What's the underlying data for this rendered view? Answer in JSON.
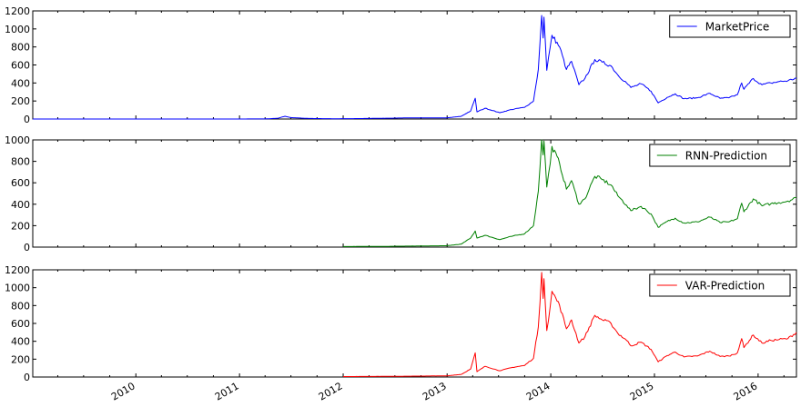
{
  "chart_data": [
    {
      "type": "line",
      "series": [
        {
          "name": "MarketPrice",
          "color": "#0000ff"
        }
      ],
      "x_range": [
        "2009-01-03",
        "2016-05-15"
      ],
      "ylim": [
        0,
        1200
      ],
      "yticks": [
        0,
        200,
        400,
        600,
        800,
        1000,
        1200
      ],
      "legend": "top-right",
      "grid": false,
      "points": [
        [
          "2009-01-03",
          0
        ],
        [
          "2010-01-01",
          0.3
        ],
        [
          "2010-07-15",
          0.07
        ],
        [
          "2011-01-01",
          0.3
        ],
        [
          "2011-04-01",
          1
        ],
        [
          "2011-05-15",
          8
        ],
        [
          "2011-06-10",
          30
        ],
        [
          "2011-07-01",
          16
        ],
        [
          "2011-09-01",
          6
        ],
        [
          "2011-12-01",
          3
        ],
        [
          "2012-03-01",
          5
        ],
        [
          "2012-08-15",
          12
        ],
        [
          "2012-12-31",
          13
        ],
        [
          "2013-02-20",
          30
        ],
        [
          "2013-03-25",
          90
        ],
        [
          "2013-04-10",
          230
        ],
        [
          "2013-04-16",
          80
        ],
        [
          "2013-05-15",
          120
        ],
        [
          "2013-07-05",
          70
        ],
        [
          "2013-08-15",
          105
        ],
        [
          "2013-10-01",
          130
        ],
        [
          "2013-11-01",
          200
        ],
        [
          "2013-11-18",
          550
        ],
        [
          "2013-11-30",
          1150
        ],
        [
          "2013-12-05",
          900
        ],
        [
          "2013-12-08",
          1130
        ],
        [
          "2013-12-18",
          540
        ],
        [
          "2013-12-30",
          800
        ],
        [
          "2014-01-05",
          930
        ],
        [
          "2014-02-01",
          800
        ],
        [
          "2014-02-25",
          550
        ],
        [
          "2014-03-15",
          640
        ],
        [
          "2014-04-10",
          380
        ],
        [
          "2014-05-01",
          450
        ],
        [
          "2014-06-05",
          660
        ],
        [
          "2014-07-01",
          630
        ],
        [
          "2014-08-01",
          590
        ],
        [
          "2014-08-25",
          490
        ],
        [
          "2014-09-25",
          400
        ],
        [
          "2014-10-10",
          350
        ],
        [
          "2014-11-15",
          390
        ],
        [
          "2014-12-20",
          310
        ],
        [
          "2015-01-14",
          180
        ],
        [
          "2015-02-15",
          240
        ],
        [
          "2015-03-15",
          280
        ],
        [
          "2015-04-15",
          225
        ],
        [
          "2015-06-01",
          235
        ],
        [
          "2015-07-15",
          285
        ],
        [
          "2015-08-20",
          230
        ],
        [
          "2015-09-20",
          235
        ],
        [
          "2015-10-20",
          270
        ],
        [
          "2015-11-04",
          400
        ],
        [
          "2015-11-12",
          330
        ],
        [
          "2015-12-15",
          450
        ],
        [
          "2016-01-15",
          380
        ],
        [
          "2016-02-15",
          400
        ],
        [
          "2016-03-15",
          415
        ],
        [
          "2016-04-15",
          425
        ],
        [
          "2016-05-15",
          455
        ]
      ]
    },
    {
      "type": "line",
      "series": [
        {
          "name": "RNN-Prediction",
          "color": "#008000"
        }
      ],
      "x_range": [
        "2009-01-03",
        "2016-05-15"
      ],
      "ylim": [
        0,
        1000
      ],
      "yticks": [
        0,
        200,
        400,
        600,
        800,
        1000
      ],
      "legend": "top-right",
      "grid": false,
      "points": [
        [
          "2012-01-01",
          5
        ],
        [
          "2012-06-01",
          7
        ],
        [
          "2012-12-31",
          13
        ],
        [
          "2013-02-20",
          28
        ],
        [
          "2013-03-25",
          85
        ],
        [
          "2013-04-10",
          150
        ],
        [
          "2013-04-16",
          85
        ],
        [
          "2013-05-15",
          110
        ],
        [
          "2013-07-05",
          70
        ],
        [
          "2013-08-15",
          100
        ],
        [
          "2013-10-01",
          125
        ],
        [
          "2013-11-01",
          200
        ],
        [
          "2013-11-18",
          520
        ],
        [
          "2013-11-30",
          1000
        ],
        [
          "2013-12-05",
          860
        ],
        [
          "2013-12-08",
          990
        ],
        [
          "2013-12-18",
          560
        ],
        [
          "2013-12-30",
          780
        ],
        [
          "2014-01-05",
          940
        ],
        [
          "2014-02-01",
          780
        ],
        [
          "2014-02-25",
          540
        ],
        [
          "2014-03-15",
          620
        ],
        [
          "2014-04-10",
          400
        ],
        [
          "2014-05-01",
          450
        ],
        [
          "2014-06-05",
          660
        ],
        [
          "2014-07-01",
          630
        ],
        [
          "2014-08-01",
          580
        ],
        [
          "2014-08-25",
          480
        ],
        [
          "2014-09-25",
          390
        ],
        [
          "2014-10-10",
          340
        ],
        [
          "2014-11-15",
          380
        ],
        [
          "2014-12-20",
          310
        ],
        [
          "2015-01-14",
          185
        ],
        [
          "2015-02-15",
          240
        ],
        [
          "2015-03-15",
          270
        ],
        [
          "2015-04-15",
          225
        ],
        [
          "2015-06-01",
          235
        ],
        [
          "2015-07-15",
          280
        ],
        [
          "2015-08-20",
          230
        ],
        [
          "2015-09-20",
          235
        ],
        [
          "2015-10-20",
          265
        ],
        [
          "2015-11-04",
          410
        ],
        [
          "2015-11-12",
          330
        ],
        [
          "2015-12-15",
          450
        ],
        [
          "2016-01-15",
          385
        ],
        [
          "2016-02-15",
          405
        ],
        [
          "2016-03-15",
          415
        ],
        [
          "2016-04-15",
          430
        ],
        [
          "2016-05-15",
          460
        ]
      ]
    },
    {
      "type": "line",
      "series": [
        {
          "name": "VAR-Prediction",
          "color": "#ff0000"
        }
      ],
      "x_range": [
        "2009-01-03",
        "2016-05-15"
      ],
      "ylim": [
        0,
        1200
      ],
      "yticks": [
        0,
        200,
        400,
        600,
        800,
        1000,
        1200
      ],
      "xticks": [
        "2010",
        "2011",
        "2012",
        "2013",
        "2014",
        "2015",
        "2016"
      ],
      "legend": "top-right",
      "grid": false,
      "points": [
        [
          "2012-01-01",
          5
        ],
        [
          "2012-06-01",
          7
        ],
        [
          "2012-12-31",
          13
        ],
        [
          "2013-02-20",
          30
        ],
        [
          "2013-03-25",
          90
        ],
        [
          "2013-04-10",
          270
        ],
        [
          "2013-04-16",
          60
        ],
        [
          "2013-05-15",
          120
        ],
        [
          "2013-07-05",
          70
        ],
        [
          "2013-08-15",
          105
        ],
        [
          "2013-10-01",
          130
        ],
        [
          "2013-11-01",
          210
        ],
        [
          "2013-11-18",
          560
        ],
        [
          "2013-11-30",
          1170
        ],
        [
          "2013-12-05",
          880
        ],
        [
          "2013-12-08",
          1100
        ],
        [
          "2013-12-18",
          520
        ],
        [
          "2013-12-30",
          790
        ],
        [
          "2014-01-05",
          960
        ],
        [
          "2014-02-01",
          800
        ],
        [
          "2014-02-25",
          540
        ],
        [
          "2014-03-15",
          640
        ],
        [
          "2014-04-10",
          380
        ],
        [
          "2014-05-01",
          450
        ],
        [
          "2014-06-05",
          690
        ],
        [
          "2014-07-01",
          640
        ],
        [
          "2014-08-01",
          600
        ],
        [
          "2014-08-25",
          490
        ],
        [
          "2014-09-25",
          410
        ],
        [
          "2014-10-10",
          350
        ],
        [
          "2014-11-15",
          390
        ],
        [
          "2014-12-20",
          310
        ],
        [
          "2015-01-14",
          170
        ],
        [
          "2015-02-15",
          240
        ],
        [
          "2015-03-15",
          280
        ],
        [
          "2015-04-15",
          225
        ],
        [
          "2015-06-01",
          235
        ],
        [
          "2015-07-15",
          290
        ],
        [
          "2015-08-20",
          230
        ],
        [
          "2015-09-20",
          235
        ],
        [
          "2015-10-20",
          270
        ],
        [
          "2015-11-04",
          430
        ],
        [
          "2015-11-12",
          330
        ],
        [
          "2015-12-15",
          470
        ],
        [
          "2016-01-15",
          380
        ],
        [
          "2016-02-15",
          410
        ],
        [
          "2016-03-15",
          420
        ],
        [
          "2016-04-15",
          430
        ],
        [
          "2016-05-15",
          500
        ]
      ]
    }
  ]
}
